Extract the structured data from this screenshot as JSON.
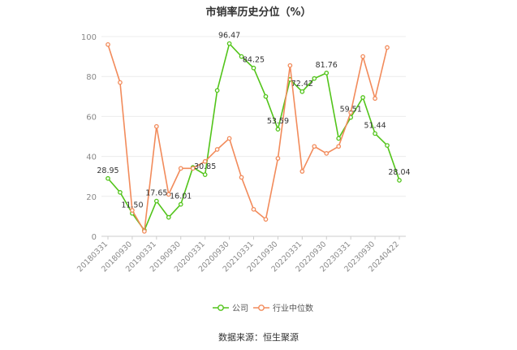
{
  "page": {
    "title": "市销率历史分位（%）",
    "source": "数据来源：恒生聚源"
  },
  "chart_data": {
    "type": "line",
    "title": "市销率历史分位（%）",
    "ylim": [
      0,
      100
    ],
    "yticks": [
      0,
      20,
      40,
      60,
      80,
      100
    ],
    "grid": true,
    "legend_position": "bottom",
    "x": [
      "20180331",
      "20180630",
      "20180930",
      "20181231",
      "20190331",
      "20190630",
      "20190930",
      "20191231",
      "20200331",
      "20200630",
      "20200930",
      "20201231",
      "20210331",
      "20210630",
      "20210930",
      "20211231",
      "20220331",
      "20220630",
      "20220930",
      "20221231",
      "20230331",
      "20230630",
      "20230930",
      "20231231",
      "20240422"
    ],
    "xtick_labels": [
      "20180331",
      "20180930",
      "20190331",
      "20190930",
      "20200331",
      "20200930",
      "20210331",
      "20210930",
      "20220331",
      "20220930",
      "20230331",
      "20230930",
      "20240422"
    ],
    "xtick_indices": [
      0,
      2,
      4,
      6,
      8,
      10,
      12,
      14,
      16,
      18,
      20,
      22,
      24
    ],
    "series": [
      {
        "name": "公司",
        "color": "#52c41a",
        "values": [
          28.95,
          22.0,
          11.5,
          3.0,
          17.65,
          9.5,
          16.01,
          34.5,
          30.85,
          73.0,
          96.47,
          90.0,
          84.25,
          70.0,
          53.59,
          78.5,
          72.42,
          79.0,
          81.76,
          49.0,
          59.51,
          69.5,
          51.44,
          45.5,
          28.04
        ],
        "labels": {
          "0": "28.95",
          "2": "11.50",
          "4": "17.65",
          "6": "16.01",
          "8": "30.85",
          "10": "96.47",
          "12": "84.25",
          "14": "53.59",
          "16": "72.42",
          "18": "81.76",
          "20": "59.51",
          "22": "51.44",
          "24": "28.04"
        }
      },
      {
        "name": "行业中位数",
        "color": "#f28b5b",
        "values": [
          96.0,
          77.0,
          13.0,
          2.5,
          55.0,
          21.0,
          34.0,
          34.0,
          37.5,
          43.5,
          49.0,
          29.5,
          13.5,
          8.5,
          39.0,
          85.5,
          32.5,
          45.0,
          41.5,
          45.0,
          62.0,
          90.0,
          69.0,
          94.5,
          null
        ]
      }
    ]
  }
}
